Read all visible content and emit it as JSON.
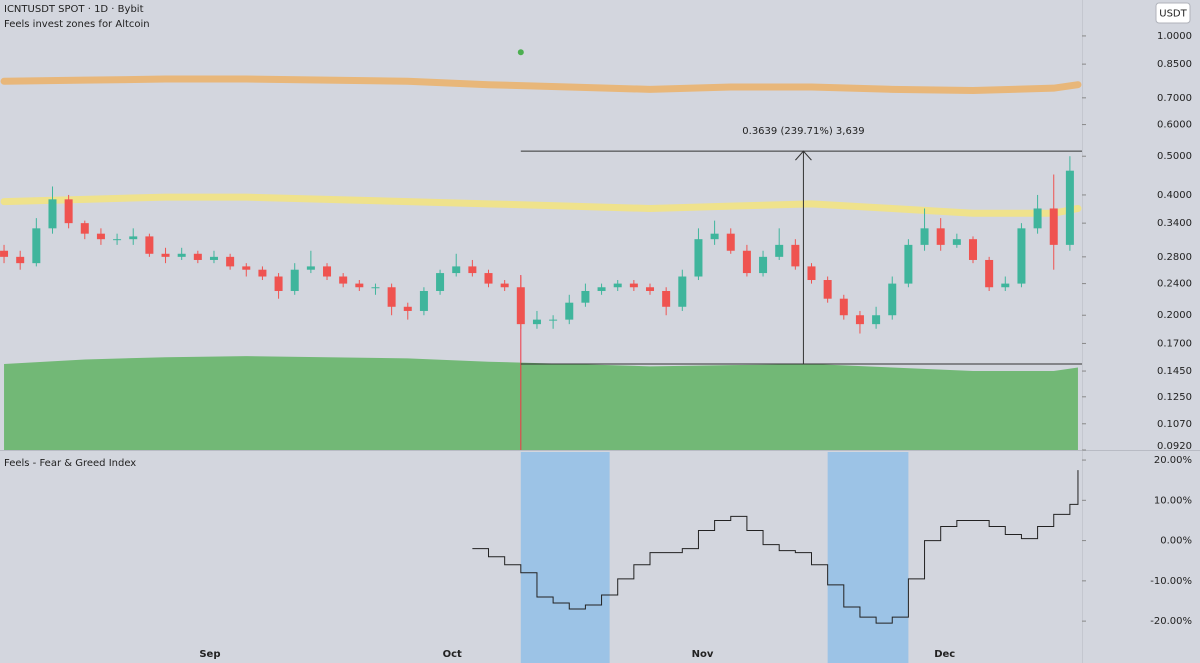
{
  "header": {
    "symbol": "ICNTUSDT SPOT · 1D · Bybit",
    "indicator": "Feels invest zones for Altcoin",
    "currency_button": "USDT"
  },
  "chart_data": [
    {
      "type": "candlestick",
      "xlim": [
        -0.5,
        133.5
      ],
      "ylim": [
        0.092,
        1.23
      ],
      "log_scale": true,
      "yticks": [
        {
          "value": 1.0,
          "label": "1.0000"
        },
        {
          "value": 0.85,
          "label": "0.8500"
        },
        {
          "value": 0.7,
          "label": "0.7000"
        },
        {
          "value": 0.6,
          "label": "0.6000"
        },
        {
          "value": 0.5,
          "label": "0.5000"
        },
        {
          "value": 0.4,
          "label": "0.4000"
        },
        {
          "value": 0.34,
          "label": "0.3400"
        },
        {
          "value": 0.28,
          "label": "0.2800"
        },
        {
          "value": 0.24,
          "label": "0.2400"
        },
        {
          "value": 0.2,
          "label": "0.2000"
        },
        {
          "value": 0.17,
          "label": "0.1700"
        },
        {
          "value": 0.145,
          "label": "0.1450"
        },
        {
          "value": 0.125,
          "label": "0.1250"
        },
        {
          "value": 0.107,
          "label": "0.1070"
        },
        {
          "value": 0.092,
          "label": "0.0920"
        }
      ],
      "up_color": "#3fb59c",
      "down_color": "#ef5350",
      "x": [
        0,
        2,
        4,
        6,
        8,
        10,
        12,
        14,
        16,
        18,
        20,
        22,
        24,
        26,
        28,
        30,
        32,
        34,
        36,
        38,
        40,
        42,
        44,
        46,
        48,
        50,
        52,
        54,
        56,
        58,
        60,
        62,
        64,
        66,
        68,
        70,
        72,
        74,
        76,
        78,
        80,
        82,
        84,
        86,
        88,
        90,
        92,
        94,
        96,
        98,
        100,
        102,
        104,
        106,
        108,
        110,
        112,
        114,
        116,
        118,
        120,
        122,
        124,
        126,
        128,
        130,
        132
      ],
      "open": [
        0.29,
        0.28,
        0.27,
        0.33,
        0.39,
        0.34,
        0.32,
        0.31,
        0.31,
        0.315,
        0.285,
        0.28,
        0.285,
        0.275,
        0.28,
        0.265,
        0.26,
        0.25,
        0.23,
        0.26,
        0.265,
        0.25,
        0.24,
        0.235,
        0.235,
        0.21,
        0.205,
        0.23,
        0.255,
        0.265,
        0.255,
        0.24,
        0.235,
        0.19,
        0.195,
        0.195,
        0.215,
        0.23,
        0.235,
        0.24,
        0.235,
        0.23,
        0.21,
        0.25,
        0.31,
        0.32,
        0.29,
        0.255,
        0.28,
        0.3,
        0.265,
        0.245,
        0.22,
        0.2,
        0.19,
        0.2,
        0.24,
        0.3,
        0.33,
        0.3,
        0.31,
        0.275,
        0.235,
        0.24,
        0.33,
        0.37,
        0.3
      ],
      "high": [
        0.3,
        0.29,
        0.35,
        0.42,
        0.4,
        0.345,
        0.33,
        0.32,
        0.33,
        0.32,
        0.295,
        0.295,
        0.29,
        0.29,
        0.285,
        0.27,
        0.265,
        0.255,
        0.27,
        0.29,
        0.27,
        0.255,
        0.245,
        0.24,
        0.24,
        0.215,
        0.235,
        0.26,
        0.285,
        0.275,
        0.26,
        0.245,
        0.25,
        0.205,
        0.2,
        0.225,
        0.24,
        0.24,
        0.245,
        0.245,
        0.24,
        0.235,
        0.26,
        0.33,
        0.345,
        0.33,
        0.3,
        0.29,
        0.33,
        0.31,
        0.27,
        0.25,
        0.225,
        0.205,
        0.21,
        0.25,
        0.31,
        0.37,
        0.35,
        0.32,
        0.315,
        0.28,
        0.25,
        0.34,
        0.4,
        0.45,
        0.5
      ],
      "low": [
        0.27,
        0.26,
        0.265,
        0.32,
        0.33,
        0.31,
        0.3,
        0.3,
        0.3,
        0.28,
        0.27,
        0.275,
        0.27,
        0.27,
        0.26,
        0.25,
        0.245,
        0.22,
        0.225,
        0.255,
        0.245,
        0.235,
        0.23,
        0.225,
        0.2,
        0.195,
        0.2,
        0.225,
        0.25,
        0.25,
        0.235,
        0.23,
        0.185,
        0.185,
        0.185,
        0.19,
        0.21,
        0.225,
        0.23,
        0.23,
        0.225,
        0.2,
        0.205,
        0.245,
        0.3,
        0.285,
        0.25,
        0.25,
        0.275,
        0.26,
        0.24,
        0.215,
        0.195,
        0.18,
        0.185,
        0.195,
        0.235,
        0.29,
        0.29,
        0.295,
        0.27,
        0.23,
        0.23,
        0.235,
        0.32,
        0.26,
        0.29
      ],
      "close": [
        0.28,
        0.27,
        0.33,
        0.39,
        0.34,
        0.32,
        0.31,
        0.31,
        0.315,
        0.285,
        0.28,
        0.285,
        0.275,
        0.28,
        0.265,
        0.26,
        0.25,
        0.23,
        0.26,
        0.265,
        0.25,
        0.24,
        0.235,
        0.235,
        0.21,
        0.205,
        0.23,
        0.255,
        0.265,
        0.255,
        0.24,
        0.235,
        0.19,
        0.195,
        0.195,
        0.215,
        0.23,
        0.235,
        0.24,
        0.235,
        0.23,
        0.21,
        0.25,
        0.31,
        0.32,
        0.29,
        0.255,
        0.28,
        0.3,
        0.265,
        0.245,
        0.22,
        0.2,
        0.19,
        0.2,
        0.24,
        0.3,
        0.33,
        0.3,
        0.31,
        0.275,
        0.235,
        0.24,
        0.33,
        0.37,
        0.3,
        0.46
      ],
      "bands": [
        {
          "color": "#e8b77a",
          "x": [
            0,
            10,
            20,
            30,
            40,
            50,
            60,
            70,
            80,
            90,
            100,
            110,
            120,
            130,
            133
          ],
          "values": [
            0.77,
            0.775,
            0.78,
            0.78,
            0.775,
            0.77,
            0.755,
            0.745,
            0.735,
            0.745,
            0.745,
            0.735,
            0.73,
            0.74,
            0.755
          ]
        },
        {
          "color": "#efe28c",
          "x": [
            0,
            10,
            20,
            30,
            40,
            50,
            60,
            70,
            80,
            90,
            100,
            110,
            120,
            130,
            133
          ],
          "values": [
            0.385,
            0.39,
            0.395,
            0.395,
            0.39,
            0.385,
            0.38,
            0.375,
            0.37,
            0.375,
            0.38,
            0.37,
            0.36,
            0.36,
            0.37
          ]
        },
        {
          "color": "#72b876",
          "fill": true,
          "x": [
            0,
            10,
            20,
            30,
            40,
            50,
            60,
            70,
            80,
            90,
            100,
            110,
            120,
            130,
            133
          ],
          "values": [
            0.151,
            0.155,
            0.157,
            0.158,
            0.157,
            0.156,
            0.153,
            0.151,
            0.149,
            0.15,
            0.151,
            0.148,
            0.145,
            0.145,
            0.148
          ]
        }
      ],
      "signals": [
        {
          "x": 64,
          "value": 0.91,
          "color": "#4caf50"
        }
      ],
      "marker_line": {
        "x": 64,
        "color": "#f23645"
      },
      "measure": {
        "text": "0.3639 (239.71%) 3,639",
        "x": [
          64,
          133.5
        ],
        "low": 0.151,
        "high": 0.5149,
        "arrow_x": 99
      }
    },
    {
      "type": "line",
      "title": "Feels - Fear & Greed Index",
      "step": true,
      "color": "#222222",
      "xlim": [
        -0.5,
        133.5
      ],
      "xticks": [
        {
          "value": 25.5,
          "label": "Sep"
        },
        {
          "value": 55.5,
          "label": "Oct"
        },
        {
          "value": 86.5,
          "label": "Nov"
        },
        {
          "value": 116.5,
          "label": "Dec"
        }
      ],
      "ylim": [
        -30.4,
        22
      ],
      "yticks": [
        {
          "value": 20,
          "label": "20.00%"
        },
        {
          "value": 10,
          "label": "10.00%"
        },
        {
          "value": 0,
          "label": "0.00%"
        },
        {
          "value": -10,
          "label": "-10.00%"
        },
        {
          "value": -20,
          "label": "-20.00%"
        }
      ],
      "highlights": [
        {
          "x": [
            64,
            75
          ],
          "color": "#9cc3e6"
        },
        {
          "x": [
            102,
            112
          ],
          "color": "#9cc3e6"
        }
      ],
      "x": [
        58,
        60,
        62,
        64,
        66,
        68,
        70,
        72,
        74,
        76,
        78,
        80,
        82,
        84,
        86,
        88,
        90,
        92,
        94,
        96,
        98,
        100,
        102,
        104,
        106,
        108,
        110,
        112,
        114,
        116,
        118,
        120,
        122,
        124,
        126,
        128,
        130,
        132,
        133
      ],
      "values": [
        -2,
        -4,
        -6,
        -8,
        -14,
        -15.5,
        -17,
        -16,
        -13.5,
        -9.5,
        -6,
        -3,
        -3,
        -2,
        2.5,
        5,
        6,
        2.5,
        -1,
        -2.5,
        -3,
        -6,
        -11,
        -16.5,
        -19,
        -20.5,
        -19,
        -9.5,
        0,
        3.5,
        5,
        5,
        3.5,
        1.5,
        0.5,
        3.5,
        6.5,
        9,
        17.5
      ]
    }
  ]
}
